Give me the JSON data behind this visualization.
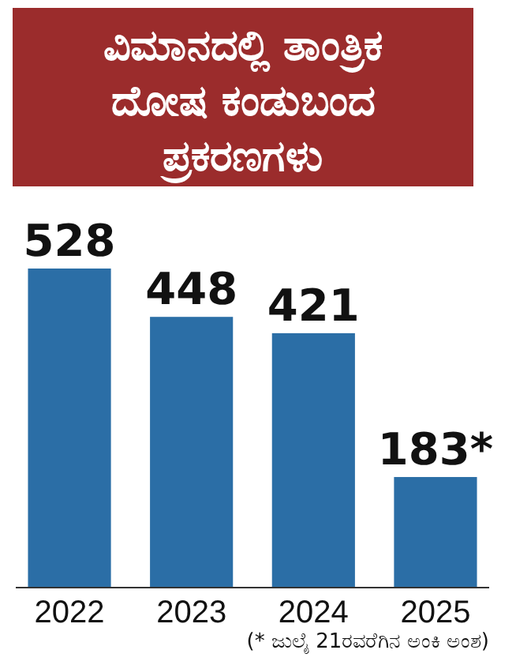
{
  "chart_data": {
    "type": "bar",
    "title": "ವಿಮಾನದಲ್ಲಿ ತಾಂತ್ರಿಕ ದೋಷ ಕಂಡುಬಂದ ಪ್ರಕರಣಗಳು",
    "categories": [
      "2022",
      "2023",
      "2024",
      "2025"
    ],
    "values": [
      528,
      448,
      421,
      183
    ],
    "value_labels": [
      "528",
      "448",
      "421",
      "183*"
    ],
    "color": "#2b6ea6",
    "annotations": [
      "(* ಜುಲೈ 21ರವರೆಗಿನ ಅಂಕಿ ಅಂಶ)"
    ]
  }
}
